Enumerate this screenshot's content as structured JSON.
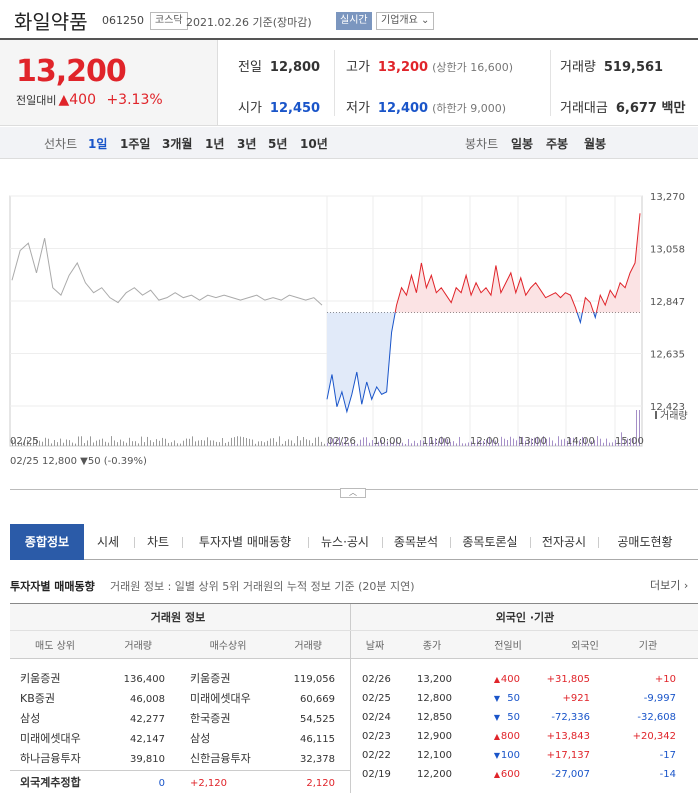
{
  "header": {
    "name": "화일약품",
    "code": "061250",
    "market": "코스닥",
    "date": "2021.02.26 기준(장마감)",
    "realtime": "실시간",
    "company_info": "기업개요"
  },
  "price": {
    "now": "13,200",
    "change_label": "전일대비",
    "change": "400",
    "change_rate": "+3.13%"
  },
  "stats": {
    "prev_close": {
      "k": "전일",
      "v": "12,800"
    },
    "high": {
      "k": "고가",
      "v": "13,200",
      "sub": "(상한가 16,600)"
    },
    "volume": {
      "k": "거래량",
      "v": "519,561"
    },
    "open": {
      "k": "시가",
      "v": "12,450"
    },
    "low": {
      "k": "저가",
      "v": "12,400",
      "sub": "(하한가 9,000)"
    },
    "amount": {
      "k": "거래대금",
      "v": "6,677 백만"
    }
  },
  "period": {
    "line_label": "선차트",
    "line_options": [
      "1일",
      "1주일",
      "3개월",
      "1년",
      "3년",
      "5년",
      "10년"
    ],
    "candle_label": "봉차트",
    "candle_options": [
      "일봉",
      "주봉",
      "월봉"
    ]
  },
  "chart_data": {
    "type": "line",
    "y_ticks": [
      "13,270",
      "13,058",
      "12,847",
      "12,635",
      "12,423"
    ],
    "ylim": [
      12423,
      13270
    ],
    "baseline": 12800,
    "x_ticks": [
      "02/25",
      "02/26",
      "10:00",
      "11:00",
      "12:00",
      "13:00",
      "14:00",
      "15:00"
    ],
    "legend": "거래량",
    "prev_day_info": "02/25  12,800 ▼50 (-0.39%)",
    "prev_day_series": [
      12930,
      13050,
      13080,
      12960,
      13100,
      12900,
      12870,
      12950,
      13000,
      12920,
      12880,
      12900,
      12860,
      12840,
      12880,
      12900,
      12870,
      12890,
      12850,
      12860,
      12880,
      12860,
      12870,
      12850,
      12870,
      12860,
      12870,
      12860,
      12850,
      12860,
      12870,
      12850,
      12860,
      12850,
      12870,
      12860,
      12850,
      12860,
      12830
    ],
    "today_series": [
      12450,
      12550,
      12420,
      12480,
      12400,
      12470,
      12560,
      12430,
      12520,
      12450,
      12500,
      12470,
      12480,
      12720,
      12830,
      12900,
      12870,
      12950,
      12880,
      13000,
      12900,
      12950,
      12880,
      12900,
      12870,
      12840,
      12900,
      12880,
      12950,
      12870,
      12920,
      12880,
      12900,
      12870,
      12990,
      12880,
      12920,
      12960,
      12880,
      12940,
      12870,
      12900,
      12920,
      12890,
      12860,
      12870,
      12880,
      12860,
      12880,
      12870,
      12820,
      12760,
      12860,
      12840,
      12780,
      12870,
      12830,
      12890,
      12860,
      12920,
      12900,
      12960,
      13000,
      13200
    ]
  },
  "tabs": [
    "종합정보",
    "시세",
    "차트",
    "투자자별 매매동향",
    "뉴스·공시",
    "종목분석",
    "종목토론실",
    "전자공시",
    "공매도현황"
  ],
  "investor": {
    "title": "투자자별 매매동향",
    "subtitle": "거래원 정보 : 일별 상위 5위 거래원의 누적 정보 기준 (20분 지연)",
    "more": "더보기",
    "broker_header": "거래원 정보",
    "broker_cols": [
      "매도 상위",
      "거래량",
      "매수상위",
      "거래량"
    ],
    "brokers": [
      [
        "키움증권",
        "136,400",
        "키움증권",
        "119,056"
      ],
      [
        "KB증권",
        "46,008",
        "미래에셋대우",
        "60,669"
      ],
      [
        "삼성",
        "42,277",
        "한국증권",
        "54,525"
      ],
      [
        "미래에셋대우",
        "42,147",
        "삼성",
        "46,115"
      ],
      [
        "하나금융투자",
        "39,810",
        "신한금융투자",
        "32,378"
      ]
    ],
    "foreign_total": {
      "label": "외국계추정합",
      "sell": "0",
      "diff": "+2,120",
      "buy": "2,120"
    },
    "foreign_header": "외국인 ·기관",
    "foreign_cols": [
      "날짜",
      "종가",
      "전일비",
      "외국인",
      "기관"
    ],
    "foreign": [
      [
        "02/26",
        "13,200",
        "400",
        "+31,805",
        "+10",
        "up"
      ],
      [
        "02/25",
        "12,800",
        "50",
        "+921",
        "-9,997",
        "down"
      ],
      [
        "02/24",
        "12,850",
        "50",
        "-72,336",
        "-32,608",
        "down"
      ],
      [
        "02/23",
        "12,900",
        "800",
        "+13,843",
        "+20,342",
        "up"
      ],
      [
        "02/22",
        "12,100",
        "100",
        "+17,137",
        "-17",
        "down"
      ],
      [
        "02/19",
        "12,200",
        "600",
        "-27,007",
        "-14",
        "up"
      ]
    ]
  }
}
